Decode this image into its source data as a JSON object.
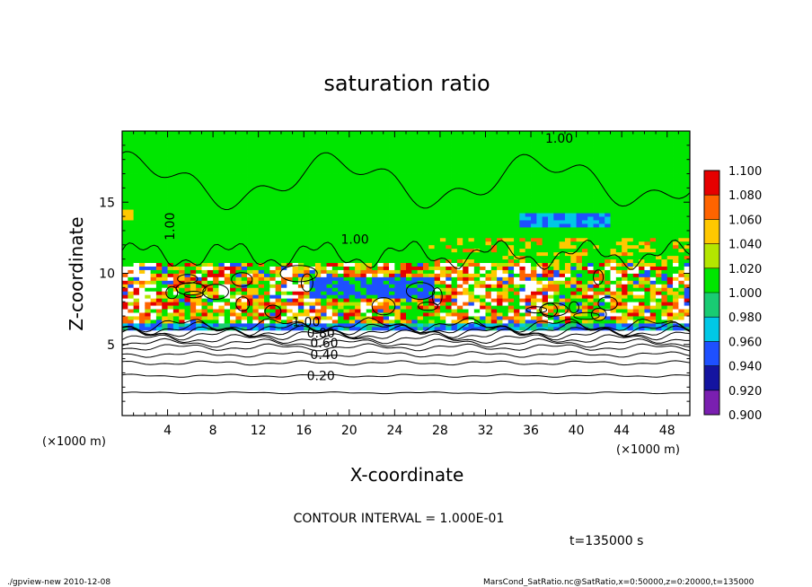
{
  "chart_data": {
    "type": "heatmap",
    "title": "saturation ratio",
    "xlabel": "X-coordinate",
    "ylabel": "Z-coordinate",
    "x_unit": "(×1000 m)",
    "y_unit": "(×1000 m)",
    "xlim": [
      0,
      50
    ],
    "ylim": [
      0,
      20
    ],
    "x_ticks": [
      "4",
      "8",
      "12",
      "16",
      "20",
      "24",
      "28",
      "32",
      "36",
      "40",
      "44",
      "48"
    ],
    "y_ticks": [
      "5",
      "10",
      "15"
    ],
    "x_tick_values": [
      4,
      8,
      12,
      16,
      20,
      24,
      28,
      32,
      36,
      40,
      44,
      48
    ],
    "y_tick_values": [
      5,
      10,
      15
    ],
    "colorbar": {
      "levels": [
        "0.900",
        "0.920",
        "0.940",
        "0.960",
        "0.980",
        "1.000",
        "1.020",
        "1.040",
        "1.060",
        "1.080",
        "1.100"
      ],
      "colors": [
        "#7a1fb0",
        "#1414a0",
        "#1e50ff",
        "#00c8e6",
        "#19cc73",
        "#00e600",
        "#b4e600",
        "#ffc800",
        "#ff6400",
        "#e60000",
        "#ff8c8c"
      ]
    },
    "contour_labels": [
      {
        "text": "1.00",
        "x": 38.5,
        "z": 19.5
      },
      {
        "text": "1.00",
        "x": 4.2,
        "z": 13.3
      },
      {
        "text": "1.00",
        "x": 20.5,
        "z": 12.4
      },
      {
        "text": "1.00",
        "x": 16.2,
        "z": 6.6
      },
      {
        "text": "0.80",
        "x": 17.5,
        "z": 5.8
      },
      {
        "text": "0.60",
        "x": 17.8,
        "z": 5.1
      },
      {
        "text": "0.40",
        "x": 17.8,
        "z": 4.3
      },
      {
        "text": "0.20",
        "x": 17.5,
        "z": 2.8
      }
    ],
    "contour_interval": "CONTOUR INTERVAL = 1.000E-01",
    "time_label": "t=135000 s"
  },
  "footer": {
    "left": "./gpview-new   2010-12-08",
    "right": "MarsCond_SatRatio.nc@SatRatio,x=0:50000,z=0:20000,t=135000"
  }
}
